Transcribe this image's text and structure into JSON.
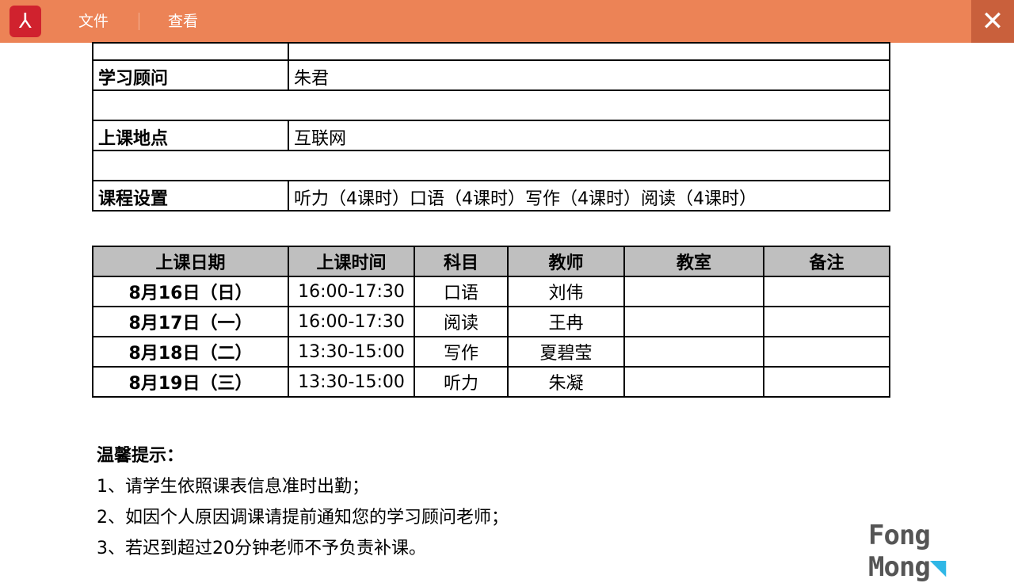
{
  "app": {
    "menu": [
      "文件",
      "查看"
    ],
    "logo_icon": "acrobat-icon",
    "close_icon": "close-icon",
    "accent": "#ec8356"
  },
  "info": [
    {
      "label": "",
      "value": ""
    },
    {
      "label": "学习顾问",
      "value": "朱君"
    },
    {
      "label": "",
      "value": ""
    },
    {
      "label": "上课地点",
      "value": "互联网"
    },
    {
      "label": "",
      "value": ""
    },
    {
      "label": "课程设置",
      "value": "听力（4课时）口语（4课时）写作（4课时）阅读（4课时）"
    }
  ],
  "schedule": {
    "headers": [
      "上课日期",
      "上课时间",
      "科目",
      "教师",
      "教室",
      "备注"
    ],
    "rows": [
      [
        "8月16日（日）",
        "16:00-17:30",
        "口语",
        "刘伟",
        "",
        ""
      ],
      [
        "8月17日（一）",
        "16:00-17:30",
        "阅读",
        "王冉",
        "",
        ""
      ],
      [
        "8月18日（二）",
        "13:30-15:00",
        "写作",
        "夏碧莹",
        "",
        ""
      ],
      [
        "8月19日（三）",
        "13:30-15:00",
        "听力",
        "朱凝",
        "",
        ""
      ]
    ]
  },
  "notes": {
    "title": "温馨提示：",
    "items": [
      "1、请学生依照课表信息准时出勤；",
      "2、如因个人原因调课请提前通知您的学习顾问老师；",
      "3、若迟到超过20分钟老师不予负责补课。"
    ]
  },
  "brand": "Fong Mong"
}
